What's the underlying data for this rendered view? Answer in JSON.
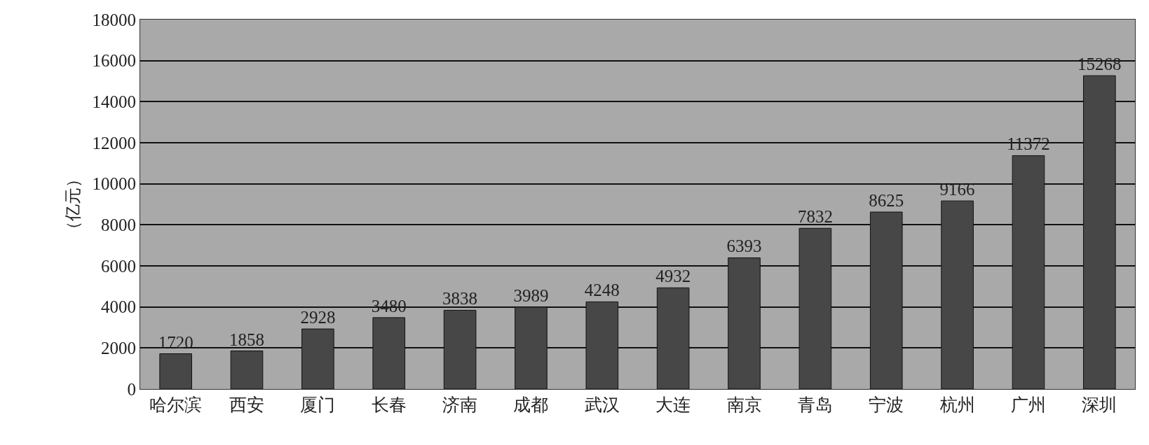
{
  "chart_data": {
    "type": "bar",
    "ylabel": "（亿元）",
    "categories": [
      "哈尔滨",
      "西安",
      "厦门",
      "长春",
      "济南",
      "成都",
      "武汉",
      "大连",
      "南京",
      "青岛",
      "宁波",
      "杭州",
      "广州",
      "深圳"
    ],
    "values": [
      1720,
      1858,
      2928,
      3480,
      3838,
      3989,
      4248,
      4932,
      6393,
      7832,
      8625,
      9166,
      11372,
      15268
    ],
    "color": "#474747",
    "data_labels": true,
    "ylim": [
      0,
      18000
    ],
    "yticks": [
      0,
      2000,
      4000,
      6000,
      8000,
      10000,
      12000,
      14000,
      16000,
      18000
    ],
    "grid": "y"
  }
}
